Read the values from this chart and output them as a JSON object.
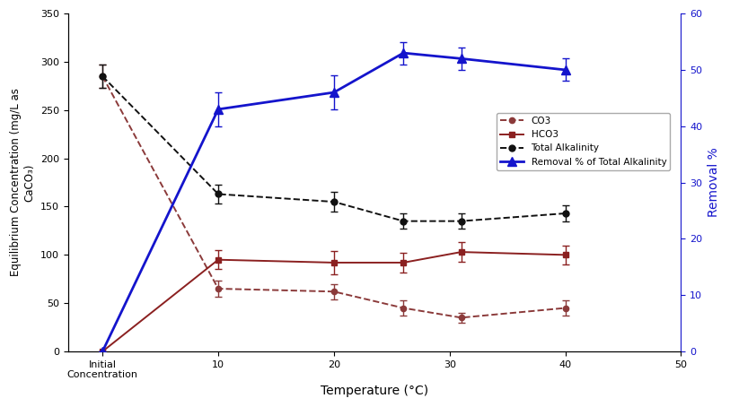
{
  "x_initial": 0,
  "x_temps": [
    10,
    20,
    26,
    31,
    40
  ],
  "x_all": [
    0,
    10,
    20,
    26,
    31,
    40
  ],
  "CO3_y": [
    285,
    65,
    62,
    45,
    35,
    45
  ],
  "CO3_yerr": [
    12,
    8,
    8,
    8,
    5,
    8
  ],
  "HCO3_y": [
    0,
    95,
    92,
    92,
    103,
    100
  ],
  "HCO3_yerr": [
    0,
    10,
    12,
    10,
    10,
    10
  ],
  "TotalAlk_y": [
    285,
    163,
    155,
    135,
    135,
    143
  ],
  "TotalAlk_yerr": [
    12,
    10,
    10,
    8,
    8,
    8
  ],
  "Removal_y": [
    0,
    43,
    46,
    53,
    52,
    50
  ],
  "Removal_yerr": [
    0,
    3,
    3,
    2,
    2,
    2
  ],
  "CO3_color": "#8B3A3A",
  "HCO3_color": "#8B2020",
  "TotalAlk_color": "#111111",
  "Removal_color": "#1414CC",
  "ylabel_left": "Equilibrium Concentration (mg/L as\nCaCO₃)",
  "ylabel_right": "Removal %",
  "xlabel": "Temperature (°C)",
  "ylim_left": [
    0,
    350
  ],
  "ylim_right": [
    0,
    60
  ],
  "xlim": [
    -3,
    50
  ],
  "xtick_positions": [
    0,
    10,
    20,
    30,
    40,
    50
  ],
  "xtick_labels": [
    "Initial\nConcentration",
    "10",
    "20",
    "30",
    "40",
    "50"
  ],
  "legend_CO3": "CO3",
  "legend_HCO3": "HCO3",
  "legend_TotalAlk": "Total Alkalinity",
  "legend_Removal": "Removal % of Total Alkalinity",
  "bg_color": "#f5f5f0"
}
